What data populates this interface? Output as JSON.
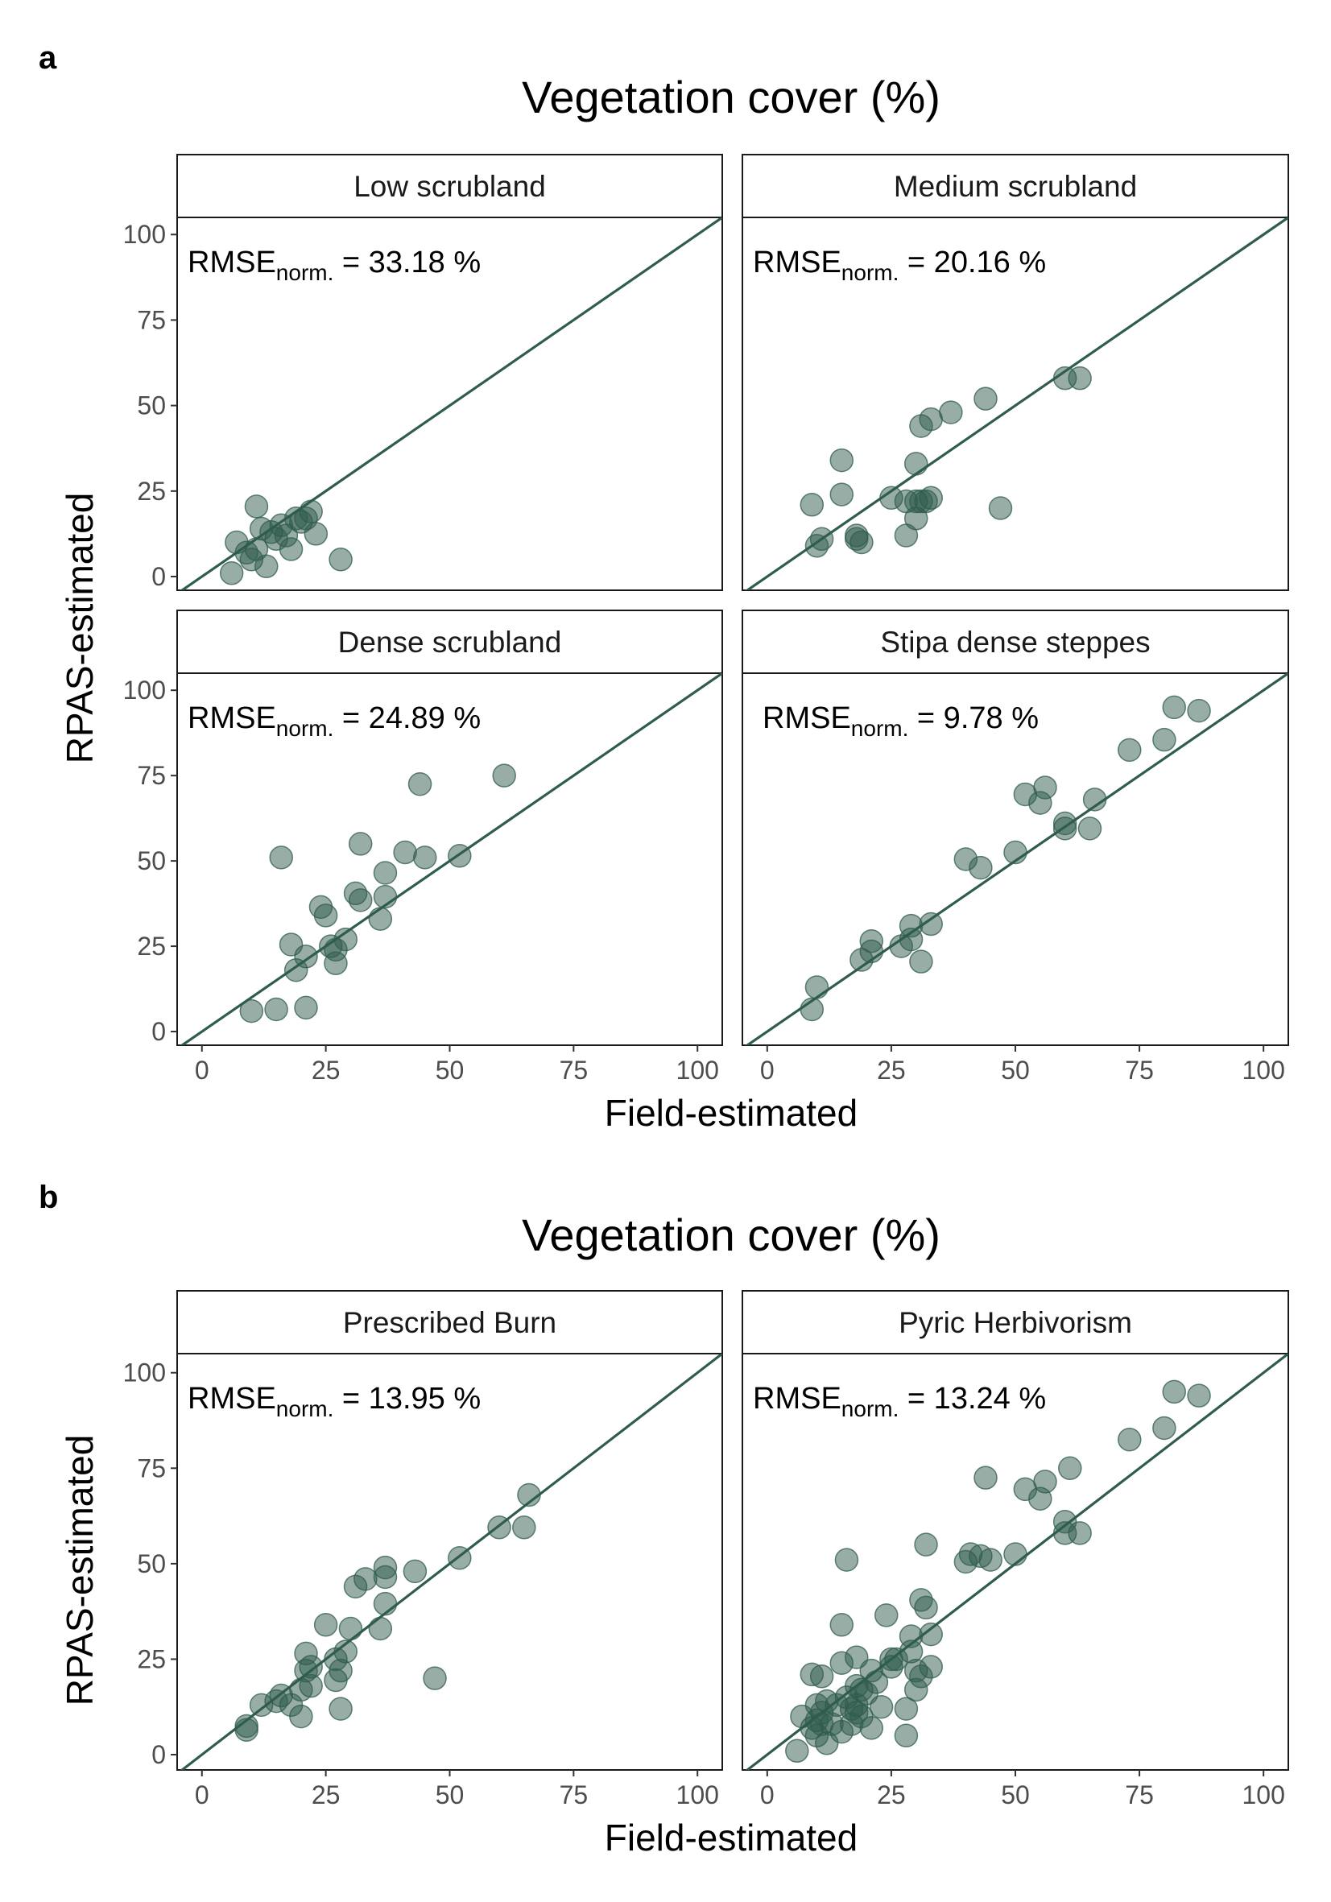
{
  "figure": {
    "panels": [
      {
        "letter": "a",
        "title": "Vegetation cover (%)",
        "xlabel": "Field-estimated",
        "ylabel": "RPAS-estimated"
      },
      {
        "letter": "b",
        "title": "Vegetation cover (%)",
        "xlabel": "Field-estimated",
        "ylabel": "RPAS-estimated"
      }
    ]
  },
  "colors": {
    "point": "#2f5c4c",
    "line": "#2f5c4c",
    "frame": "#1a1a1a",
    "strip_fill": "#ffffff",
    "axis_text": "#4d4d4d"
  },
  "chart_data": [
    {
      "type": "scatter",
      "facet": "Low scrubland",
      "xlim": [
        -5,
        105
      ],
      "ylim": [
        -4,
        105
      ],
      "xticks": [
        "0",
        "25",
        "50",
        "75",
        "100"
      ],
      "yticks": [
        "0",
        "25",
        "50",
        "75",
        "100"
      ],
      "reference_line": "1:1",
      "annotation": {
        "prefix": "RMSE",
        "sub": "norm.",
        "value": " = 33.18 %"
      },
      "points": [
        [
          6,
          1
        ],
        [
          7,
          10
        ],
        [
          9,
          7
        ],
        [
          10,
          5
        ],
        [
          11,
          20.5
        ],
        [
          11,
          8
        ],
        [
          12,
          14
        ],
        [
          13,
          3
        ],
        [
          14,
          13
        ],
        [
          15,
          11
        ],
        [
          16,
          15
        ],
        [
          17,
          12
        ],
        [
          18,
          8
        ],
        [
          19,
          17
        ],
        [
          20,
          16
        ],
        [
          21,
          17
        ],
        [
          22,
          19
        ],
        [
          23,
          12.5
        ],
        [
          28,
          5
        ]
      ]
    },
    {
      "type": "scatter",
      "facet": "Medium scrubland",
      "xlim": [
        -5,
        105
      ],
      "ylim": [
        -4,
        105
      ],
      "xticks": [
        "0",
        "25",
        "50",
        "75",
        "100"
      ],
      "yticks": [
        "0",
        "25",
        "50",
        "75",
        "100"
      ],
      "reference_line": "1:1",
      "annotation": {
        "prefix": "RMSE",
        "sub": "norm.",
        "value": " = 20.16 %"
      },
      "points": [
        [
          9,
          21
        ],
        [
          10,
          9
        ],
        [
          11,
          11
        ],
        [
          15,
          34
        ],
        [
          15,
          24
        ],
        [
          18,
          12
        ],
        [
          18,
          11
        ],
        [
          19,
          10
        ],
        [
          25,
          23
        ],
        [
          28,
          12
        ],
        [
          28,
          22
        ],
        [
          30,
          33
        ],
        [
          30,
          17
        ],
        [
          30,
          22
        ],
        [
          31,
          44
        ],
        [
          31,
          22
        ],
        [
          32,
          22
        ],
        [
          33,
          23
        ],
        [
          33,
          46
        ],
        [
          37,
          48
        ],
        [
          44,
          52
        ],
        [
          47,
          20
        ],
        [
          60,
          58
        ],
        [
          63,
          58
        ]
      ]
    },
    {
      "type": "scatter",
      "facet": "Dense scrubland",
      "xlim": [
        -5,
        105
      ],
      "ylim": [
        -4,
        105
      ],
      "xticks": [
        "0",
        "25",
        "50",
        "75",
        "100"
      ],
      "yticks": [
        "0",
        "25",
        "50",
        "75",
        "100"
      ],
      "reference_line": "1:1",
      "annotation": {
        "prefix": "RMSE",
        "sub": "norm.",
        "value": " = 24.89 %"
      },
      "points": [
        [
          10,
          6
        ],
        [
          15,
          6.5
        ],
        [
          16,
          51
        ],
        [
          18,
          25.5
        ],
        [
          19,
          18
        ],
        [
          21,
          7
        ],
        [
          21,
          22
        ],
        [
          24,
          36.5
        ],
        [
          25,
          34
        ],
        [
          26,
          25
        ],
        [
          27,
          20
        ],
        [
          27,
          24
        ],
        [
          29,
          27
        ],
        [
          31,
          40.5
        ],
        [
          32,
          55
        ],
        [
          32,
          38.5
        ],
        [
          36,
          33
        ],
        [
          37,
          46.5
        ],
        [
          37,
          39.5
        ],
        [
          41,
          52.5
        ],
        [
          44,
          72.5
        ],
        [
          45,
          51
        ],
        [
          52,
          51.5
        ],
        [
          61,
          75
        ]
      ]
    },
    {
      "type": "scatter",
      "facet": "Stipa dense steppes",
      "xlim": [
        -5,
        105
      ],
      "ylim": [
        -4,
        105
      ],
      "xticks": [
        "0",
        "25",
        "50",
        "75",
        "100"
      ],
      "yticks": [
        "0",
        "25",
        "50",
        "75",
        "100"
      ],
      "reference_line": "1:1",
      "annotation": {
        "prefix": "RMSE",
        "sub": "norm.",
        "value": " = 9.78 %"
      },
      "points": [
        [
          9,
          6.5
        ],
        [
          10,
          13
        ],
        [
          19,
          21
        ],
        [
          21,
          26.5
        ],
        [
          21,
          23.5
        ],
        [
          27,
          25
        ],
        [
          29,
          27
        ],
        [
          29,
          31
        ],
        [
          31,
          20.5
        ],
        [
          33,
          31.5
        ],
        [
          40,
          50.5
        ],
        [
          43,
          48
        ],
        [
          50,
          52.5
        ],
        [
          52,
          69.5
        ],
        [
          55,
          67
        ],
        [
          56,
          71.5
        ],
        [
          60,
          61
        ],
        [
          60,
          59.5
        ],
        [
          65,
          59.5
        ],
        [
          66,
          68
        ],
        [
          73,
          82.5
        ],
        [
          80,
          85.5
        ],
        [
          82,
          95
        ],
        [
          87,
          94
        ]
      ]
    },
    {
      "type": "scatter",
      "facet": "Prescribed Burn",
      "xlim": [
        -5,
        105
      ],
      "ylim": [
        -4,
        105
      ],
      "xticks": [
        "0",
        "25",
        "50",
        "75",
        "100"
      ],
      "yticks": [
        "0",
        "25",
        "50",
        "75",
        "100"
      ],
      "reference_line": "1:1",
      "annotation": {
        "prefix": "RMSE",
        "sub": "norm.",
        "value": " = 13.95 %"
      },
      "points": [
        [
          9,
          6.5
        ],
        [
          9,
          7.5
        ],
        [
          12,
          13
        ],
        [
          15,
          14
        ],
        [
          16,
          15.5
        ],
        [
          18,
          13
        ],
        [
          20,
          10
        ],
        [
          20,
          17
        ],
        [
          21,
          22
        ],
        [
          21,
          26.5
        ],
        [
          22,
          18
        ],
        [
          22,
          23
        ],
        [
          25,
          34
        ],
        [
          27,
          19.5
        ],
        [
          27,
          25
        ],
        [
          28,
          12
        ],
        [
          28,
          22
        ],
        [
          29,
          27
        ],
        [
          30,
          33
        ],
        [
          31,
          44
        ],
        [
          33,
          46
        ],
        [
          36,
          33
        ],
        [
          37,
          49
        ],
        [
          37,
          46.5
        ],
        [
          37,
          39.5
        ],
        [
          43,
          48
        ],
        [
          47,
          20
        ],
        [
          52,
          51.5
        ],
        [
          60,
          59.5
        ],
        [
          65,
          59.5
        ],
        [
          66,
          68
        ]
      ]
    },
    {
      "type": "scatter",
      "facet": "Pyric Herbivorism",
      "xlim": [
        -5,
        105
      ],
      "ylim": [
        -4,
        105
      ],
      "xticks": [
        "0",
        "25",
        "50",
        "75",
        "100"
      ],
      "yticks": [
        "0",
        "25",
        "50",
        "75",
        "100"
      ],
      "reference_line": "1:1",
      "annotation": {
        "prefix": "RMSE",
        "sub": "norm.",
        "value": " = 13.24 %"
      },
      "points": [
        [
          6,
          1
        ],
        [
          7,
          10
        ],
        [
          9,
          21
        ],
        [
          9,
          7
        ],
        [
          10,
          5
        ],
        [
          10,
          9
        ],
        [
          10,
          13
        ],
        [
          11,
          20.5
        ],
        [
          11,
          11
        ],
        [
          11,
          8
        ],
        [
          12,
          14
        ],
        [
          12,
          3
        ],
        [
          13,
          8
        ],
        [
          14,
          13
        ],
        [
          15,
          34
        ],
        [
          15,
          24
        ],
        [
          15,
          6
        ],
        [
          16,
          51
        ],
        [
          16,
          15
        ],
        [
          17,
          12
        ],
        [
          17,
          8
        ],
        [
          18,
          25.5
        ],
        [
          18,
          18
        ],
        [
          18,
          13
        ],
        [
          18,
          11
        ],
        [
          19,
          10
        ],
        [
          19,
          17
        ],
        [
          20,
          16
        ],
        [
          21,
          7
        ],
        [
          21,
          22
        ],
        [
          22,
          19
        ],
        [
          23,
          12.5
        ],
        [
          24,
          36.5
        ],
        [
          25,
          23
        ],
        [
          25,
          25
        ],
        [
          26,
          25
        ],
        [
          28,
          12
        ],
        [
          28,
          5
        ],
        [
          29,
          27
        ],
        [
          29,
          31
        ],
        [
          30,
          17
        ],
        [
          30,
          22
        ],
        [
          31,
          40.5
        ],
        [
          31,
          20.5
        ],
        [
          32,
          55
        ],
        [
          32,
          38.5
        ],
        [
          33,
          23
        ],
        [
          33,
          31.5
        ],
        [
          40,
          50.5
        ],
        [
          41,
          52.5
        ],
        [
          43,
          52
        ],
        [
          44,
          72.5
        ],
        [
          45,
          51
        ],
        [
          50,
          52.5
        ],
        [
          52,
          69.5
        ],
        [
          55,
          67
        ],
        [
          56,
          71.5
        ],
        [
          60,
          61
        ],
        [
          60,
          58
        ],
        [
          61,
          75
        ],
        [
          63,
          58
        ],
        [
          73,
          82.5
        ],
        [
          80,
          85.5
        ],
        [
          82,
          95
        ],
        [
          87,
          94
        ]
      ]
    }
  ]
}
